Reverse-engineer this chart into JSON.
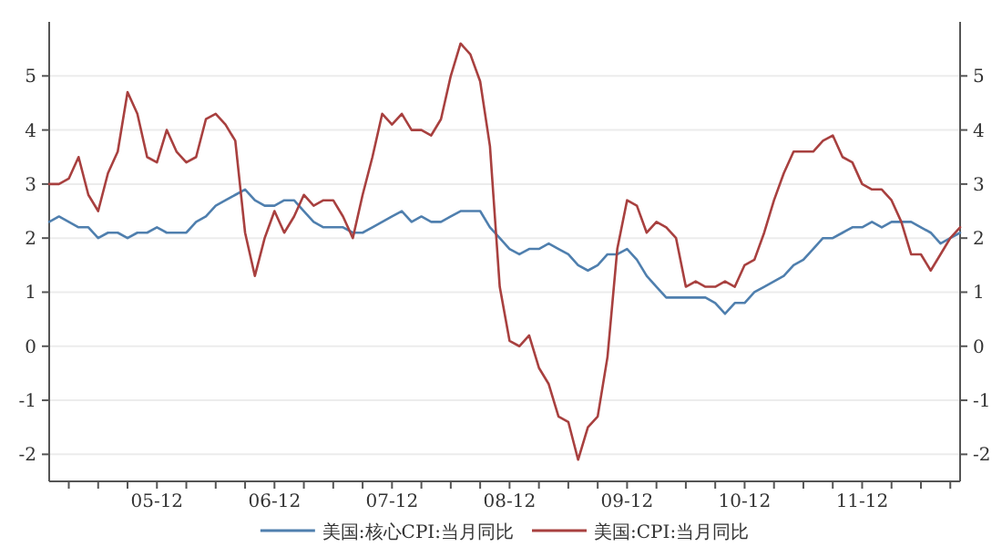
{
  "chart_data": {
    "type": "line",
    "x": [
      "2005-01",
      "2005-02",
      "2005-03",
      "2005-04",
      "2005-05",
      "2005-06",
      "2005-07",
      "2005-08",
      "2005-09",
      "2005-10",
      "2005-11",
      "2005-12",
      "2006-01",
      "2006-02",
      "2006-03",
      "2006-04",
      "2006-05",
      "2006-06",
      "2006-07",
      "2006-08",
      "2006-09",
      "2006-10",
      "2006-11",
      "2006-12",
      "2007-01",
      "2007-02",
      "2007-03",
      "2007-04",
      "2007-05",
      "2007-06",
      "2007-07",
      "2007-08",
      "2007-09",
      "2007-10",
      "2007-11",
      "2007-12",
      "2008-01",
      "2008-02",
      "2008-03",
      "2008-04",
      "2008-05",
      "2008-06",
      "2008-07",
      "2008-08",
      "2008-09",
      "2008-10",
      "2008-11",
      "2008-12",
      "2009-01",
      "2009-02",
      "2009-03",
      "2009-04",
      "2009-05",
      "2009-06",
      "2009-07",
      "2009-08",
      "2009-09",
      "2009-10",
      "2009-11",
      "2009-12",
      "2010-01",
      "2010-02",
      "2010-03",
      "2010-04",
      "2010-05",
      "2010-06",
      "2010-07",
      "2010-08",
      "2010-09",
      "2010-10",
      "2010-11",
      "2010-12",
      "2011-01",
      "2011-02",
      "2011-03",
      "2011-04",
      "2011-05",
      "2011-06",
      "2011-07",
      "2011-08",
      "2011-09",
      "2011-10",
      "2011-11",
      "2011-12",
      "2012-01",
      "2012-02",
      "2012-03",
      "2012-04",
      "2012-05",
      "2012-06",
      "2012-07",
      "2012-08",
      "2012-09",
      "2012-10"
    ],
    "series": [
      {
        "name": "美国:核心CPI:当月同比",
        "color": "#4f7fae",
        "values": [
          2.3,
          2.4,
          2.3,
          2.2,
          2.2,
          2.0,
          2.1,
          2.1,
          2.0,
          2.1,
          2.1,
          2.2,
          2.1,
          2.1,
          2.1,
          2.3,
          2.4,
          2.6,
          2.7,
          2.8,
          2.9,
          2.7,
          2.6,
          2.6,
          2.7,
          2.7,
          2.5,
          2.3,
          2.2,
          2.2,
          2.2,
          2.1,
          2.1,
          2.2,
          2.3,
          2.4,
          2.5,
          2.3,
          2.4,
          2.3,
          2.3,
          2.4,
          2.5,
          2.5,
          2.5,
          2.2,
          2.0,
          1.8,
          1.7,
          1.8,
          1.8,
          1.9,
          1.8,
          1.7,
          1.5,
          1.4,
          1.5,
          1.7,
          1.7,
          1.8,
          1.6,
          1.3,
          1.1,
          0.9,
          0.9,
          0.9,
          0.9,
          0.9,
          0.8,
          0.6,
          0.8,
          0.8,
          1.0,
          1.1,
          1.2,
          1.3,
          1.5,
          1.6,
          1.8,
          2.0,
          2.0,
          2.1,
          2.2,
          2.2,
          2.3,
          2.2,
          2.3,
          2.3,
          2.3,
          2.2,
          2.1,
          1.9,
          2.0,
          2.1
        ]
      },
      {
        "name": "美国:CPI:当月同比",
        "color": "#a8403f",
        "values": [
          3.0,
          3.0,
          3.1,
          3.5,
          2.8,
          2.5,
          3.2,
          3.6,
          4.7,
          4.3,
          3.5,
          3.4,
          4.0,
          3.6,
          3.4,
          3.5,
          4.2,
          4.3,
          4.1,
          3.8,
          2.1,
          1.3,
          2.0,
          2.5,
          2.1,
          2.4,
          2.8,
          2.6,
          2.7,
          2.7,
          2.4,
          2.0,
          2.8,
          3.5,
          4.3,
          4.1,
          4.3,
          4.0,
          4.0,
          3.9,
          4.2,
          5.0,
          5.6,
          5.4,
          4.9,
          3.7,
          1.1,
          0.1,
          0.0,
          0.2,
          -0.4,
          -0.7,
          -1.3,
          -1.4,
          -2.1,
          -1.5,
          -1.3,
          -0.2,
          1.8,
          2.7,
          2.6,
          2.1,
          2.3,
          2.2,
          2.0,
          1.1,
          1.2,
          1.1,
          1.1,
          1.2,
          1.1,
          1.5,
          1.6,
          2.1,
          2.7,
          3.2,
          3.6,
          3.6,
          3.6,
          3.8,
          3.9,
          3.5,
          3.4,
          3.0,
          2.9,
          2.9,
          2.7,
          2.3,
          1.7,
          1.7,
          1.4,
          1.7,
          2.0,
          2.2
        ]
      }
    ],
    "xlim": [
      "2005-01",
      "2012-10"
    ],
    "xticks": [
      {
        "value": "2005-03",
        "label": null
      },
      {
        "value": "2005-06",
        "label": null
      },
      {
        "value": "2005-09",
        "label": null
      },
      {
        "value": "2005-12",
        "label": "05-12"
      },
      {
        "value": "2006-03",
        "label": null
      },
      {
        "value": "2006-06",
        "label": null
      },
      {
        "value": "2006-09",
        "label": null
      },
      {
        "value": "2006-12",
        "label": "06-12"
      },
      {
        "value": "2007-03",
        "label": null
      },
      {
        "value": "2007-06",
        "label": null
      },
      {
        "value": "2007-09",
        "label": null
      },
      {
        "value": "2007-12",
        "label": "07-12"
      },
      {
        "value": "2008-03",
        "label": null
      },
      {
        "value": "2008-06",
        "label": null
      },
      {
        "value": "2008-09",
        "label": null
      },
      {
        "value": "2008-12",
        "label": "08-12"
      },
      {
        "value": "2009-03",
        "label": null
      },
      {
        "value": "2009-06",
        "label": null
      },
      {
        "value": "2009-09",
        "label": null
      },
      {
        "value": "2009-12",
        "label": "09-12"
      },
      {
        "value": "2010-03",
        "label": null
      },
      {
        "value": "2010-06",
        "label": null
      },
      {
        "value": "2010-09",
        "label": null
      },
      {
        "value": "2010-12",
        "label": "10-12"
      },
      {
        "value": "2011-03",
        "label": null
      },
      {
        "value": "2011-06",
        "label": null
      },
      {
        "value": "2011-09",
        "label": null
      },
      {
        "value": "2011-12",
        "label": "11-12"
      },
      {
        "value": "2012-03",
        "label": null
      },
      {
        "value": "2012-06",
        "label": null
      },
      {
        "value": "2012-09",
        "label": null
      }
    ],
    "ylim": [
      -2.5,
      6
    ],
    "yticks": [
      -2,
      -1,
      0,
      1,
      2,
      3,
      4,
      5
    ],
    "y2lim": [
      -2.5,
      6
    ],
    "y2ticks": [
      -2,
      -1,
      0,
      1,
      2,
      3,
      4,
      5
    ],
    "grid": "y",
    "legend": "bottom",
    "marker": "none",
    "line_style": "solid"
  }
}
